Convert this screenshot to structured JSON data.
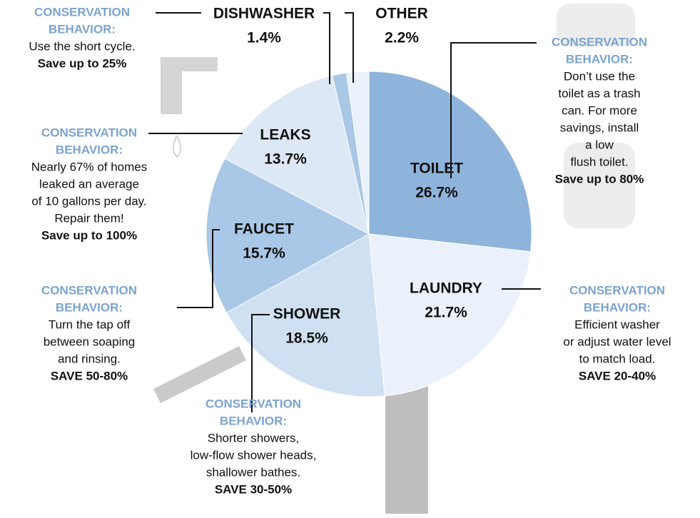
{
  "chart_data": {
    "type": "pie",
    "categories": [
      "TOILET",
      "LAUNDRY",
      "SHOWER",
      "FAUCET",
      "LEAKS",
      "DISHWASHER",
      "OTHER"
    ],
    "values": [
      26.7,
      21.7,
      18.5,
      15.7,
      13.7,
      1.4,
      2.2
    ],
    "value_labels": [
      "26.7%",
      "21.7%",
      "18.5%",
      "15.7%",
      "13.7%",
      "1.4%",
      "2.2%"
    ],
    "colors": [
      "#8fb4dc",
      "#eaf1fa",
      "#cfe0f2",
      "#a9c7e7",
      "#dce8f5",
      "#a9c7e7",
      "#eaf1fa"
    ],
    "annotations": [
      {
        "heading": [
          "CONSERVATION",
          "BEHAVIOR:"
        ],
        "body": [
          "Use the short cycle."
        ],
        "save": "Save up to 25%"
      },
      {
        "heading": [
          "CONSERVATION",
          "BEHAVIOR:"
        ],
        "body": [
          "Don’t use the",
          "toilet as a trash",
          "can. For more",
          "savings, install",
          "a low",
          "flush toilet."
        ],
        "save": "Save up to 80%"
      },
      {
        "heading": [
          "CONSERVATION",
          "BEHAVIOR:"
        ],
        "body": [
          "Nearly 67% of homes",
          "leaked an average",
          "of 10 gallons per day.",
          "Repair them!"
        ],
        "save": "Save up to 100%"
      },
      {
        "heading": [
          "CONSERVATION",
          "BEHAVIOR:"
        ],
        "body": [
          "Turn the tap off",
          "between soaping",
          "and rinsing."
        ],
        "save": "SAVE 50-80%"
      },
      {
        "heading": [
          "CONSERVATION",
          "BEHAVIOR:"
        ],
        "body": [
          "Efficient washer",
          "or adjust water level",
          "to match load."
        ],
        "save": "SAVE 20-40%"
      },
      {
        "heading": [
          "CONSERVATION",
          "BEHAVIOR:"
        ],
        "body": [
          "Shorter showers,",
          "low-flow shower heads,",
          "shallower bathes."
        ],
        "save": "SAVE 30-50%"
      }
    ]
  }
}
